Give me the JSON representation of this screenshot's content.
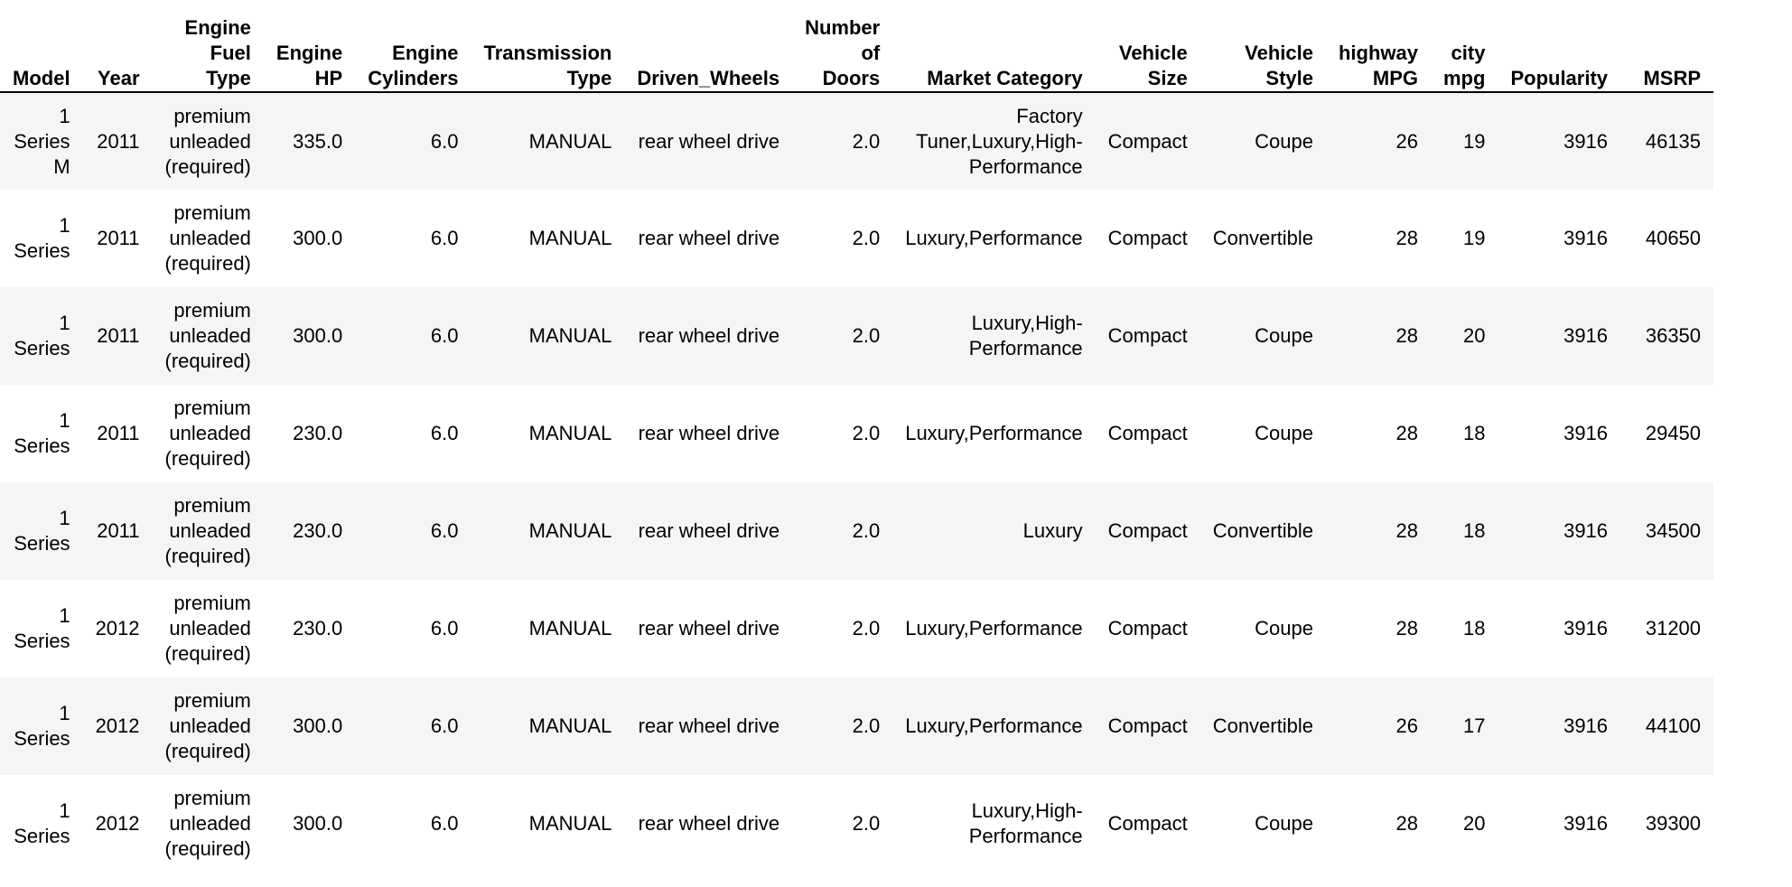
{
  "table": {
    "columns": [
      {
        "key": "model",
        "lines": [
          "Model"
        ]
      },
      {
        "key": "year",
        "lines": [
          "Year"
        ]
      },
      {
        "key": "fuel",
        "lines": [
          "Engine",
          "Fuel",
          "Type"
        ]
      },
      {
        "key": "hp",
        "lines": [
          "Engine",
          "HP"
        ]
      },
      {
        "key": "cyl",
        "lines": [
          "Engine",
          "Cylinders"
        ]
      },
      {
        "key": "trans",
        "lines": [
          "Transmission",
          "Type"
        ]
      },
      {
        "key": "driven",
        "lines": [
          "Driven_Wheels"
        ]
      },
      {
        "key": "doors",
        "lines": [
          "Number",
          "of",
          "Doors"
        ]
      },
      {
        "key": "market",
        "lines": [
          "Market Category"
        ]
      },
      {
        "key": "size",
        "lines": [
          "Vehicle",
          "Size"
        ]
      },
      {
        "key": "style",
        "lines": [
          "Vehicle",
          "Style"
        ]
      },
      {
        "key": "hwy",
        "lines": [
          "highway",
          "MPG"
        ]
      },
      {
        "key": "city",
        "lines": [
          "city",
          "mpg"
        ]
      },
      {
        "key": "pop",
        "lines": [
          "Popularity"
        ]
      },
      {
        "key": "msrp",
        "lines": [
          "MSRP"
        ]
      }
    ],
    "rows": [
      {
        "model": [
          "1",
          "Series",
          "M"
        ],
        "year": "2011",
        "fuel": [
          "premium",
          "unleaded",
          "(required)"
        ],
        "hp": "335.0",
        "cyl": "6.0",
        "trans": "MANUAL",
        "driven": "rear wheel drive",
        "doors": "2.0",
        "market": [
          "Factory",
          "Tuner,Luxury,High-",
          "Performance"
        ],
        "size": "Compact",
        "style": "Coupe",
        "hwy": "26",
        "city": "19",
        "pop": "3916",
        "msrp": "46135"
      },
      {
        "model": [
          "1",
          "Series"
        ],
        "year": "2011",
        "fuel": [
          "premium",
          "unleaded",
          "(required)"
        ],
        "hp": "300.0",
        "cyl": "6.0",
        "trans": "MANUAL",
        "driven": "rear wheel drive",
        "doors": "2.0",
        "market": [
          "Luxury,Performance"
        ],
        "size": "Compact",
        "style": "Convertible",
        "hwy": "28",
        "city": "19",
        "pop": "3916",
        "msrp": "40650"
      },
      {
        "model": [
          "1",
          "Series"
        ],
        "year": "2011",
        "fuel": [
          "premium",
          "unleaded",
          "(required)"
        ],
        "hp": "300.0",
        "cyl": "6.0",
        "trans": "MANUAL",
        "driven": "rear wheel drive",
        "doors": "2.0",
        "market": [
          "Luxury,High-",
          "Performance"
        ],
        "size": "Compact",
        "style": "Coupe",
        "hwy": "28",
        "city": "20",
        "pop": "3916",
        "msrp": "36350"
      },
      {
        "model": [
          "1",
          "Series"
        ],
        "year": "2011",
        "fuel": [
          "premium",
          "unleaded",
          "(required)"
        ],
        "hp": "230.0",
        "cyl": "6.0",
        "trans": "MANUAL",
        "driven": "rear wheel drive",
        "doors": "2.0",
        "market": [
          "Luxury,Performance"
        ],
        "size": "Compact",
        "style": "Coupe",
        "hwy": "28",
        "city": "18",
        "pop": "3916",
        "msrp": "29450"
      },
      {
        "model": [
          "1",
          "Series"
        ],
        "year": "2011",
        "fuel": [
          "premium",
          "unleaded",
          "(required)"
        ],
        "hp": "230.0",
        "cyl": "6.0",
        "trans": "MANUAL",
        "driven": "rear wheel drive",
        "doors": "2.0",
        "market": [
          "Luxury"
        ],
        "size": "Compact",
        "style": "Convertible",
        "hwy": "28",
        "city": "18",
        "pop": "3916",
        "msrp": "34500"
      },
      {
        "model": [
          "1",
          "Series"
        ],
        "year": "2012",
        "fuel": [
          "premium",
          "unleaded",
          "(required)"
        ],
        "hp": "230.0",
        "cyl": "6.0",
        "trans": "MANUAL",
        "driven": "rear wheel drive",
        "doors": "2.0",
        "market": [
          "Luxury,Performance"
        ],
        "size": "Compact",
        "style": "Coupe",
        "hwy": "28",
        "city": "18",
        "pop": "3916",
        "msrp": "31200"
      },
      {
        "model": [
          "1",
          "Series"
        ],
        "year": "2012",
        "fuel": [
          "premium",
          "unleaded",
          "(required)"
        ],
        "hp": "300.0",
        "cyl": "6.0",
        "trans": "MANUAL",
        "driven": "rear wheel drive",
        "doors": "2.0",
        "market": [
          "Luxury,Performance"
        ],
        "size": "Compact",
        "style": "Convertible",
        "hwy": "26",
        "city": "17",
        "pop": "3916",
        "msrp": "44100"
      },
      {
        "model": [
          "1",
          "Series"
        ],
        "year": "2012",
        "fuel": [
          "premium",
          "unleaded",
          "(required)"
        ],
        "hp": "300.0",
        "cyl": "6.0",
        "trans": "MANUAL",
        "driven": "rear wheel drive",
        "doors": "2.0",
        "market": [
          "Luxury,High-",
          "Performance"
        ],
        "size": "Compact",
        "style": "Coupe",
        "hwy": "28",
        "city": "20",
        "pop": "3916",
        "msrp": "39300"
      }
    ]
  }
}
